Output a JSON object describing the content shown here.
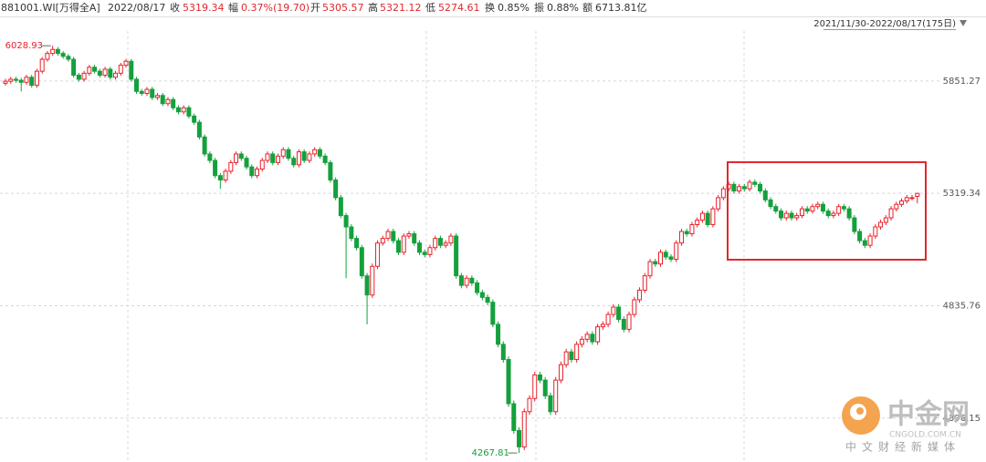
{
  "header": {
    "code": "881001.WI[万得全A]",
    "date": "2022/08/17",
    "items": [
      {
        "label": "收",
        "value": "5319.34"
      },
      {
        "label": "幅",
        "value": "0.37%(19.70)"
      },
      {
        "label": "开",
        "value": "5305.57"
      },
      {
        "label": "高",
        "value": "5321.12"
      },
      {
        "label": "低",
        "value": "5274.61"
      },
      {
        "label": "换",
        "value": "0.85%"
      },
      {
        "label": "振",
        "value": "0.88%"
      },
      {
        "label": "额",
        "value": "6713.81亿"
      }
    ]
  },
  "range_label": "2021/11/30-2022/08/17(175日)",
  "watermark": {
    "name": "中金网",
    "site": "CNGOLD.COM.CN",
    "slogan": "中文财经新媒体"
  },
  "chart_data": {
    "type": "candlestick",
    "log_scale": true,
    "grid": true,
    "up_color": "#e8212b",
    "down_color": "#14a03c",
    "ylim": [
      4255,
      6200
    ],
    "yticks": [
      5851.27,
      5319.34,
      4835.76,
      4396.15
    ],
    "annotations": [
      {
        "text": "6028.93",
        "index": 9,
        "at": "high"
      },
      {
        "text": "4267.81",
        "index": 98,
        "at": "low"
      }
    ],
    "open": [
      5840,
      5850,
      5860,
      5855,
      5845,
      5870,
      5830,
      5900,
      5960,
      5990,
      6010,
      5990,
      5975,
      5960,
      5880,
      5860,
      5890,
      5920,
      5900,
      5880,
      5910,
      5870,
      5890,
      5930,
      5950,
      5860,
      5800,
      5790,
      5810,
      5770,
      5780,
      5740,
      5760,
      5720,
      5700,
      5720,
      5680,
      5650,
      5580,
      5500,
      5470,
      5400,
      5380,
      5420,
      5460,
      5500,
      5480,
      5440,
      5400,
      5430,
      5470,
      5500,
      5460,
      5490,
      5520,
      5480,
      5450,
      5510,
      5470,
      5500,
      5520,
      5490,
      5460,
      5380,
      5300,
      5220,
      5170,
      5120,
      5080,
      4960,
      4880,
      5000,
      5100,
      5120,
      5150,
      5110,
      5060,
      5130,
      5140,
      5100,
      5060,
      5050,
      5080,
      5120,
      5090,
      5100,
      5130,
      4960,
      4920,
      4950,
      4930,
      4890,
      4870,
      4850,
      4760,
      4680,
      4620,
      4450,
      4350,
      4290,
      4420,
      4470,
      4560,
      4540,
      4480,
      4420,
      4540,
      4600,
      4650,
      4620,
      4680,
      4700,
      4720,
      4690,
      4750,
      4760,
      4800,
      4830,
      4780,
      4740,
      4800,
      4860,
      4900,
      4960,
      5020,
      5010,
      5060,
      5040,
      5030,
      5100,
      5150,
      5140,
      5180,
      5200,
      5230,
      5180,
      5250,
      5300,
      5340,
      5360,
      5330,
      5350,
      5340,
      5370,
      5360,
      5330,
      5290,
      5260,
      5240,
      5210,
      5230,
      5210,
      5220,
      5250,
      5240,
      5260,
      5270,
      5240,
      5220,
      5230,
      5260,
      5250,
      5210,
      5150,
      5110,
      5090,
      5130,
      5170,
      5190,
      5210,
      5250,
      5270,
      5285,
      5300,
      5305.57
    ],
    "high": [
      5862,
      5872,
      5872,
      5867,
      5882,
      5882,
      5912,
      5972,
      6002,
      6028.93,
      6022,
      6002,
      5987,
      5972,
      5892,
      5902,
      5932,
      5932,
      5912,
      5922,
      5922,
      5902,
      5942,
      5962,
      5962,
      5872,
      5812,
      5822,
      5822,
      5792,
      5792,
      5772,
      5772,
      5732,
      5732,
      5732,
      5692,
      5662,
      5592,
      5512,
      5482,
      5412,
      5432,
      5472,
      5512,
      5512,
      5492,
      5452,
      5442,
      5482,
      5512,
      5512,
      5502,
      5532,
      5532,
      5492,
      5522,
      5522,
      5512,
      5532,
      5532,
      5502,
      5472,
      5392,
      5312,
      5232,
      5182,
      5132,
      5092,
      4972,
      5012,
      5112,
      5132,
      5162,
      5162,
      5122,
      5142,
      5152,
      5152,
      5112,
      5072,
      5092,
      5132,
      5132,
      5112,
      5142,
      5142,
      4972,
      4962,
      4962,
      4942,
      4902,
      4882,
      4862,
      4772,
      4692,
      4632,
      4462,
      4362,
      4432,
      4482,
      4572,
      4572,
      4552,
      4492,
      4552,
      4612,
      4662,
      4662,
      4692,
      4712,
      4732,
      4732,
      4762,
      4772,
      4812,
      4842,
      4842,
      4792,
      4812,
      4872,
      4912,
      4972,
      5032,
      5032,
      5072,
      5072,
      5052,
      5112,
      5162,
      5162,
      5192,
      5212,
      5242,
      5242,
      5262,
      5312,
      5352,
      5372,
      5372,
      5362,
      5362,
      5382,
      5382,
      5372,
      5342,
      5302,
      5272,
      5252,
      5242,
      5242,
      5232,
      5262,
      5262,
      5272,
      5282,
      5282,
      5252,
      5242,
      5272,
      5272,
      5262,
      5222,
      5162,
      5122,
      5142,
      5182,
      5202,
      5222,
      5262,
      5282,
      5297,
      5312,
      5312,
      5321.12
    ],
    "low": [
      5828,
      5838,
      5843,
      5800,
      5833,
      5818,
      5818,
      5888,
      5948,
      5978,
      5978,
      5963,
      5948,
      5868,
      5848,
      5848,
      5878,
      5888,
      5868,
      5868,
      5858,
      5858,
      5878,
      5918,
      5848,
      5788,
      5778,
      5778,
      5758,
      5758,
      5728,
      5728,
      5708,
      5688,
      5688,
      5668,
      5638,
      5568,
      5488,
      5458,
      5388,
      5340,
      5368,
      5408,
      5448,
      5468,
      5428,
      5388,
      5388,
      5418,
      5458,
      5448,
      5448,
      5478,
      5468,
      5438,
      5438,
      5458,
      5458,
      5488,
      5478,
      5448,
      5368,
      5288,
      5208,
      4950,
      5108,
      5068,
      4948,
      4760,
      4868,
      4988,
      5088,
      5108,
      5098,
      5048,
      5048,
      5118,
      5088,
      5048,
      5038,
      5038,
      5068,
      5078,
      5078,
      5088,
      4948,
      4908,
      4908,
      4918,
      4878,
      4858,
      4838,
      4748,
      4668,
      4608,
      4438,
      4338,
      4267.81,
      4278,
      4408,
      4458,
      4528,
      4468,
      4408,
      4408,
      4528,
      4588,
      4608,
      4608,
      4668,
      4688,
      4678,
      4678,
      4738,
      4748,
      4788,
      4768,
      4728,
      4728,
      4788,
      4848,
      4888,
      4948,
      4998,
      4998,
      5028,
      5018,
      5018,
      5088,
      5128,
      5128,
      5168,
      5188,
      5168,
      5168,
      5238,
      5288,
      5328,
      5318,
      5318,
      5328,
      5328,
      5348,
      5318,
      5278,
      5248,
      5228,
      5198,
      5198,
      5198,
      5198,
      5208,
      5228,
      5228,
      5248,
      5228,
      5208,
      5208,
      5218,
      5238,
      5198,
      5138,
      5098,
      5078,
      5078,
      5118,
      5158,
      5178,
      5198,
      5238,
      5258,
      5273,
      5288,
      5274.61
    ],
    "close": [
      5850,
      5860,
      5855,
      5845,
      5870,
      5830,
      5900,
      5960,
      5990,
      6010,
      5990,
      5975,
      5960,
      5880,
      5860,
      5890,
      5920,
      5900,
      5880,
      5910,
      5870,
      5890,
      5930,
      5950,
      5860,
      5800,
      5790,
      5810,
      5770,
      5780,
      5740,
      5760,
      5720,
      5700,
      5720,
      5680,
      5650,
      5580,
      5500,
      5470,
      5400,
      5380,
      5420,
      5460,
      5500,
      5480,
      5440,
      5400,
      5430,
      5470,
      5500,
      5460,
      5490,
      5520,
      5480,
      5450,
      5510,
      5470,
      5500,
      5520,
      5490,
      5460,
      5380,
      5300,
      5220,
      5170,
      5120,
      5080,
      4960,
      4880,
      5000,
      5100,
      5120,
      5150,
      5110,
      5060,
      5130,
      5140,
      5100,
      5060,
      5050,
      5080,
      5120,
      5090,
      5100,
      5130,
      4960,
      4920,
      4950,
      4930,
      4890,
      4870,
      4850,
      4760,
      4680,
      4620,
      4450,
      4350,
      4290,
      4420,
      4470,
      4560,
      4540,
      4480,
      4420,
      4540,
      4600,
      4650,
      4620,
      4680,
      4700,
      4720,
      4690,
      4750,
      4760,
      4800,
      4830,
      4780,
      4740,
      4800,
      4860,
      4900,
      4960,
      5020,
      5010,
      5060,
      5040,
      5030,
      5100,
      5150,
      5140,
      5180,
      5200,
      5230,
      5180,
      5250,
      5300,
      5340,
      5360,
      5330,
      5350,
      5340,
      5370,
      5360,
      5330,
      5290,
      5260,
      5240,
      5210,
      5230,
      5210,
      5220,
      5250,
      5240,
      5260,
      5270,
      5240,
      5220,
      5230,
      5260,
      5250,
      5210,
      5150,
      5110,
      5090,
      5130,
      5170,
      5190,
      5210,
      5250,
      5270,
      5285,
      5300,
      5300,
      5319.34
    ]
  }
}
